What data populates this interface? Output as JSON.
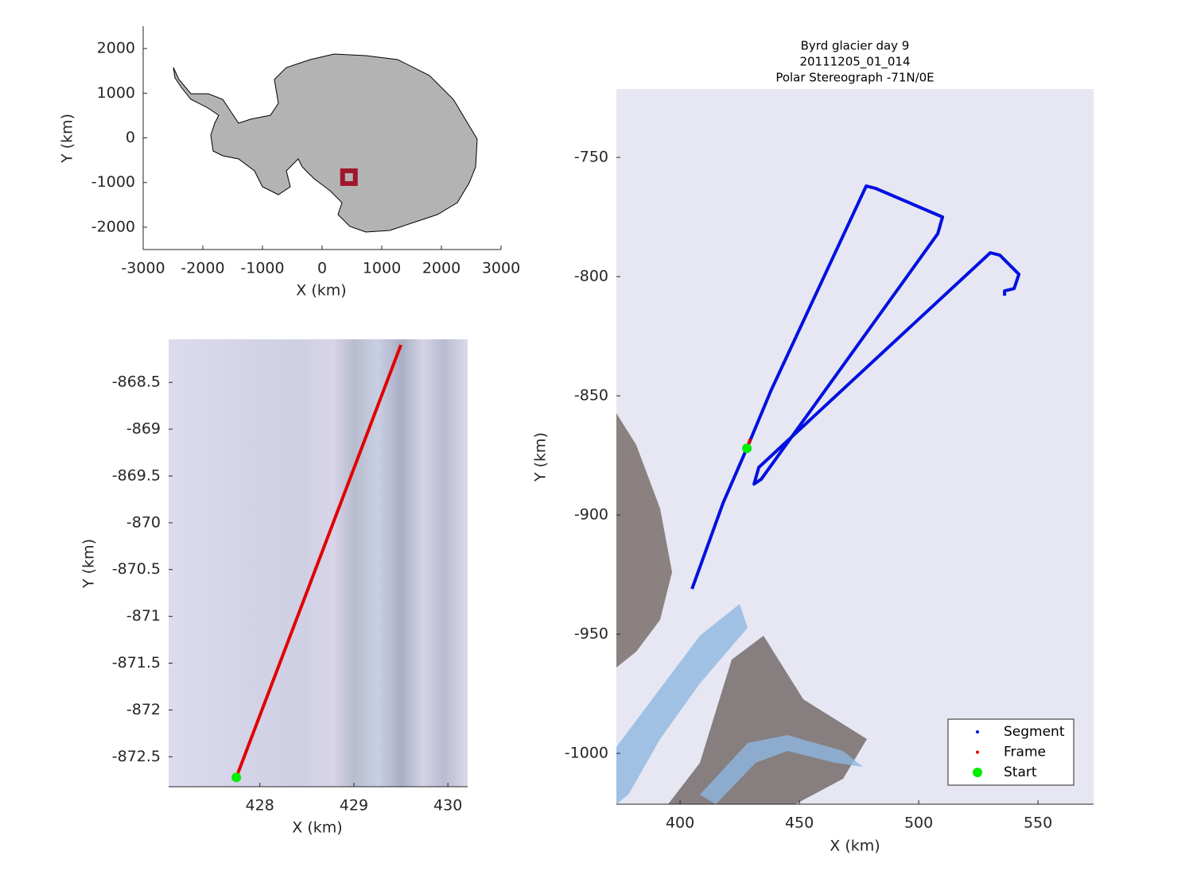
{
  "chart_data": [
    {
      "type": "map",
      "x_label": "X (km)",
      "y_label": "Y (km)",
      "xlim": [
        -3000,
        3000
      ],
      "ylim": [
        -2500,
        2500
      ],
      "xticks": [
        -3000,
        -2000,
        -1000,
        0,
        1000,
        2000,
        3000
      ],
      "yticks": [
        -2000,
        -1000,
        0,
        1000,
        2000
      ],
      "series": [
        {
          "mode": "square",
          "color": "#a0162c",
          "x": [
            450
          ],
          "y": [
            -880
          ]
        }
      ]
    },
    {
      "type": "map",
      "x_label": "X (km)",
      "y_label": "Y (km)",
      "xlim": [
        427.03,
        430.21
      ],
      "ylim": [
        -872.82,
        -868.04
      ],
      "xticks": [
        428,
        429,
        430
      ],
      "yticks": [
        -872.5,
        -872,
        -871.5,
        -871,
        -870.5,
        -870,
        -869.5,
        -869,
        -868.5
      ],
      "series": [
        {
          "mode": "line",
          "color": "#e00000",
          "x": [
            427.75,
            429.5
          ],
          "y": [
            -872.72,
            -868.1
          ]
        },
        {
          "mode": "marker",
          "color": "#00ee00",
          "x": [
            427.75
          ],
          "y": [
            -872.72
          ]
        }
      ]
    },
    {
      "type": "map",
      "title": [
        "Byrd glacier day 9",
        "20111205_01_014",
        "Polar Stereograph -71N/0E"
      ],
      "x_label": "X (km)",
      "y_label": "Y (km)",
      "xlim": [
        373.3,
        573.3
      ],
      "ylim": [
        -1021.3,
        -721.3
      ],
      "xticks": [
        400,
        450,
        500,
        550
      ],
      "yticks": [
        -1000,
        -950,
        -900,
        -850,
        -800,
        -750
      ],
      "legend": "lower right",
      "series": [
        {
          "name": "Segment",
          "mode": "line",
          "color": "#0010e0",
          "x": [
            405,
            418,
            428,
            438,
            478,
            482,
            510,
            508,
            434,
            431,
            433,
            530,
            534,
            542,
            540,
            536,
            536
          ],
          "y": [
            -931,
            -895,
            -872,
            -848,
            -762,
            -763,
            -775,
            -782,
            -885,
            -887,
            -880,
            -790,
            -791,
            -799,
            -805,
            -806,
            -808
          ]
        },
        {
          "name": "Frame",
          "mode": "line",
          "color": "#e00000",
          "x": [
            428,
            429.5
          ],
          "y": [
            -872,
            -868
          ]
        },
        {
          "name": "Start",
          "mode": "marker",
          "color": "#00ee00",
          "x": [
            428
          ],
          "y": [
            -872
          ]
        }
      ]
    }
  ]
}
